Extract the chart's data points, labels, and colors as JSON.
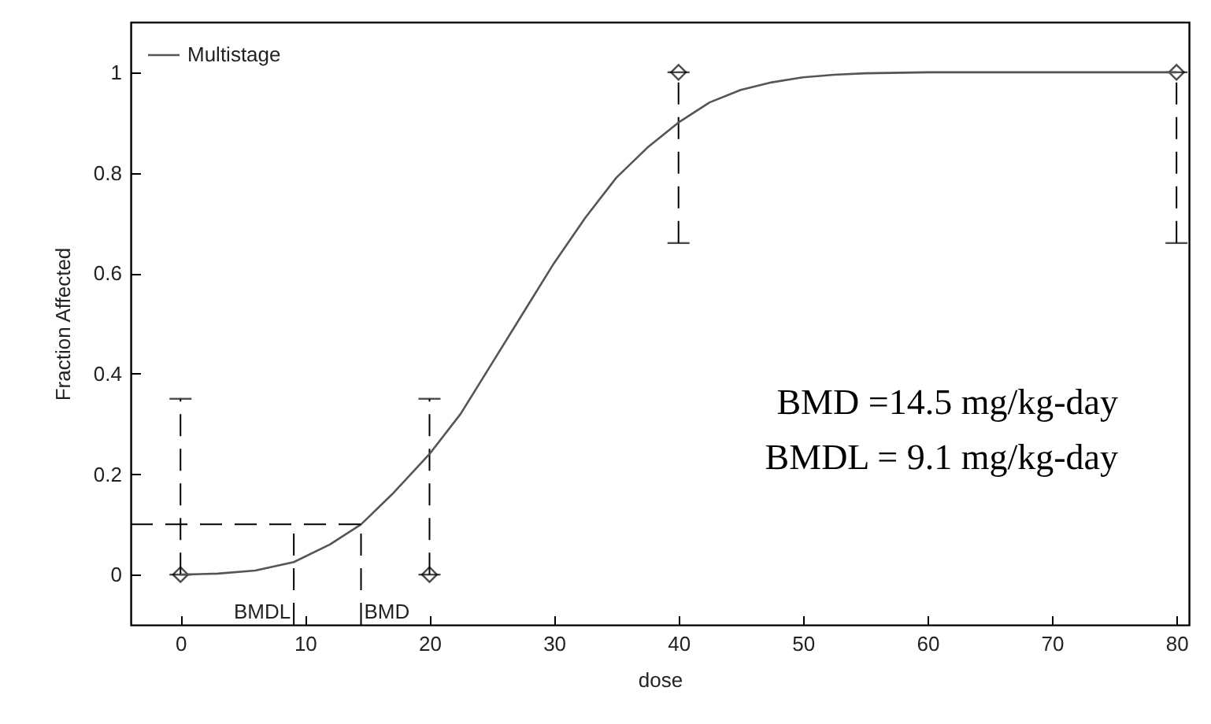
{
  "chart_data": {
    "type": "scatter",
    "xlabel": "dose",
    "ylabel": "Fraction Affected",
    "xlim": [
      -4,
      81
    ],
    "ylim": [
      -0.1,
      1.1
    ],
    "xticks": [
      0,
      10,
      20,
      30,
      40,
      50,
      60,
      70,
      80
    ],
    "yticks": [
      0,
      0.2,
      0.4,
      0.6,
      0.8,
      1
    ],
    "grid": false,
    "legend": "top left",
    "series": [
      {
        "color": "#000000",
        "marker": "diamond",
        "x": [
          0,
          20,
          40,
          80
        ],
        "values": [
          0,
          0,
          1,
          1
        ],
        "errors": [
          [
            0,
            0.35
          ],
          [
            0,
            0.35
          ],
          [
            0.66,
            1
          ],
          [
            0.66,
            1
          ]
        ]
      },
      {
        "type": "line",
        "name": "Multistage",
        "color": "#555555",
        "marker": "none",
        "x": [
          0,
          3,
          6,
          9.1,
          12,
          14.5,
          17,
          20,
          22.5,
          25,
          27.5,
          30,
          32.5,
          35,
          37.5,
          40,
          42.5,
          45,
          47.5,
          50,
          52.5,
          55,
          60,
          70,
          80
        ],
        "values": [
          0,
          0.002,
          0.008,
          0.025,
          0.06,
          0.1,
          0.16,
          0.24,
          0.32,
          0.42,
          0.52,
          0.62,
          0.71,
          0.79,
          0.85,
          0.9,
          0.94,
          0.965,
          0.98,
          0.99,
          0.995,
          0.998,
          1,
          1,
          1
        ]
      }
    ],
    "ref_lines": [
      {
        "axis": "y",
        "value": 0.1,
        "label": null,
        "line_style": "dashed"
      },
      {
        "axis": "x",
        "value": 9.1,
        "label": "BMDL",
        "line_style": "dashed"
      },
      {
        "axis": "x",
        "value": 14.5,
        "label": "BMD",
        "line_style": "dashed"
      }
    ],
    "annotations": [
      "BMD =14.5 mg/kg-day",
      "BMDL =  9.1 mg/kg-day"
    ]
  }
}
